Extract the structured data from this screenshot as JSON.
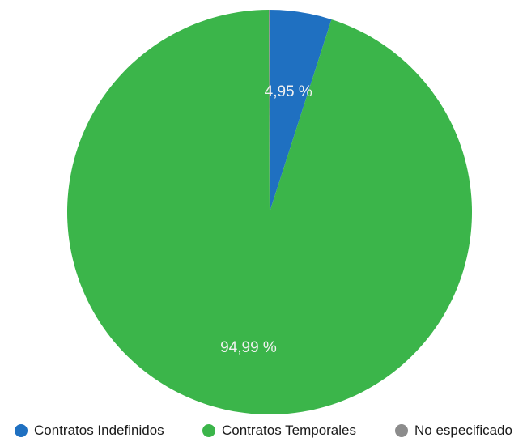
{
  "chart_data": {
    "type": "pie",
    "title": "",
    "slices": [
      {
        "name": "Contratos Indefinidos",
        "value": 4.95,
        "label": "4,95 %",
        "color": "#1f70c1"
      },
      {
        "name": "Contratos Temporales",
        "value": 94.99,
        "label": "94,99 %",
        "color": "#3bb54a"
      },
      {
        "name": "No especificado",
        "value": 0.06,
        "label": "",
        "color": "#8c8c8c"
      }
    ],
    "start_angle": "top (12 o'clock)",
    "direction": "clockwise",
    "legend": {
      "placement": "bottom",
      "entries": [
        "Contratos Indefinidos",
        "Contratos Temporales",
        "No especificado"
      ]
    }
  }
}
